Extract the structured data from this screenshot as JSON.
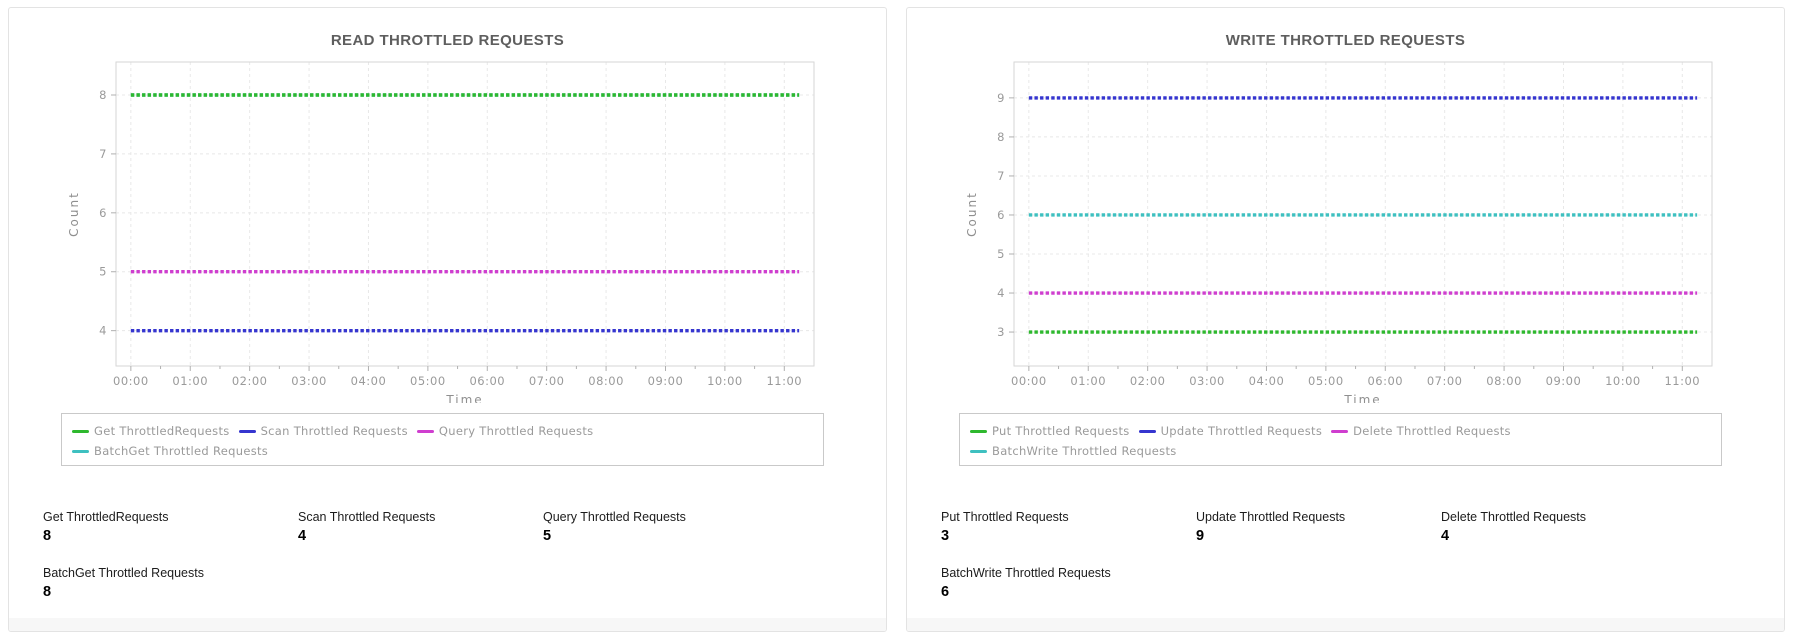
{
  "panels": [
    {
      "title": "READ THROTTLED REQUESTS",
      "chart": 0,
      "stats": [
        {
          "label": "Get ThrottledRequests",
          "value": "8"
        },
        {
          "label": "Scan Throttled Requests",
          "value": "4"
        },
        {
          "label": "Query Throttled Requests",
          "value": "5"
        },
        {
          "label": "BatchGet Throttled Requests",
          "value": "8"
        }
      ]
    },
    {
      "title": "WRITE THROTTLED REQUESTS",
      "chart": 1,
      "stats": [
        {
          "label": "Put Throttled Requests",
          "value": "3"
        },
        {
          "label": "Update Throttled Requests",
          "value": "9"
        },
        {
          "label": "Delete Throttled Requests",
          "value": "4"
        },
        {
          "label": "BatchWrite Throttled Requests",
          "value": "6"
        }
      ]
    }
  ],
  "chart_data": [
    {
      "type": "line",
      "title": "READ THROTTLED REQUESTS",
      "xlabel": "Time",
      "ylabel": "Count",
      "x_tick_labels": [
        "00:00",
        "01:00",
        "02:00",
        "03:00",
        "04:00",
        "05:00",
        "06:00",
        "07:00",
        "08:00",
        "09:00",
        "10:00",
        "11:00"
      ],
      "x_tick_hours": [
        0,
        1,
        2,
        3,
        4,
        5,
        6,
        7,
        8,
        9,
        10,
        11
      ],
      "xlim_hours": [
        -0.25,
        11.5
      ],
      "x_data_range_hours": [
        0,
        11.25
      ],
      "ylim": [
        3.4,
        8.56
      ],
      "y_ticks": [
        4,
        5,
        6,
        7,
        8
      ],
      "grid": true,
      "legend_position": "bottom",
      "series": [
        {
          "name": "Get ThrottledRequests",
          "value": 8,
          "color": "#2eb82e"
        },
        {
          "name": "Scan Throttled Requests",
          "value": 4,
          "color": "#3535cf"
        },
        {
          "name": "Query Throttled Requests",
          "value": 5,
          "color": "#cf3ecf"
        },
        {
          "name": "BatchGet Throttled Requests",
          "value": 8,
          "color": "#3ec0c0"
        }
      ],
      "legend_rows": [
        [
          0,
          1,
          2
        ],
        [
          3
        ]
      ]
    },
    {
      "type": "line",
      "title": "WRITE THROTTLED REQUESTS",
      "xlabel": "Time",
      "ylabel": "Count",
      "x_tick_labels": [
        "00:00",
        "01:00",
        "02:00",
        "03:00",
        "04:00",
        "05:00",
        "06:00",
        "07:00",
        "08:00",
        "09:00",
        "10:00",
        "11:00"
      ],
      "x_tick_hours": [
        0,
        1,
        2,
        3,
        4,
        5,
        6,
        7,
        8,
        9,
        10,
        11
      ],
      "xlim_hours": [
        -0.25,
        11.5
      ],
      "x_data_range_hours": [
        0,
        11.25
      ],
      "ylim": [
        2.13,
        9.92
      ],
      "y_ticks": [
        3,
        4,
        5,
        6,
        7,
        8,
        9
      ],
      "grid": true,
      "legend_position": "bottom",
      "series": [
        {
          "name": "Put Throttled Requests",
          "value": 3,
          "color": "#2eb82e"
        },
        {
          "name": "Update Throttled Requests",
          "value": 9,
          "color": "#3535cf"
        },
        {
          "name": "Delete Throttled Requests",
          "value": 4,
          "color": "#cf3ecf"
        },
        {
          "name": "BatchWrite Throttled Requests",
          "value": 6,
          "color": "#3ec0c0"
        }
      ],
      "legend_rows": [
        [
          0,
          1,
          2
        ],
        [
          3
        ]
      ]
    }
  ],
  "style_colors": {
    "plot_border": "#d6d6d6",
    "grid_line": "#e8e8e8",
    "tick_mark": "#b0b0b0"
  }
}
